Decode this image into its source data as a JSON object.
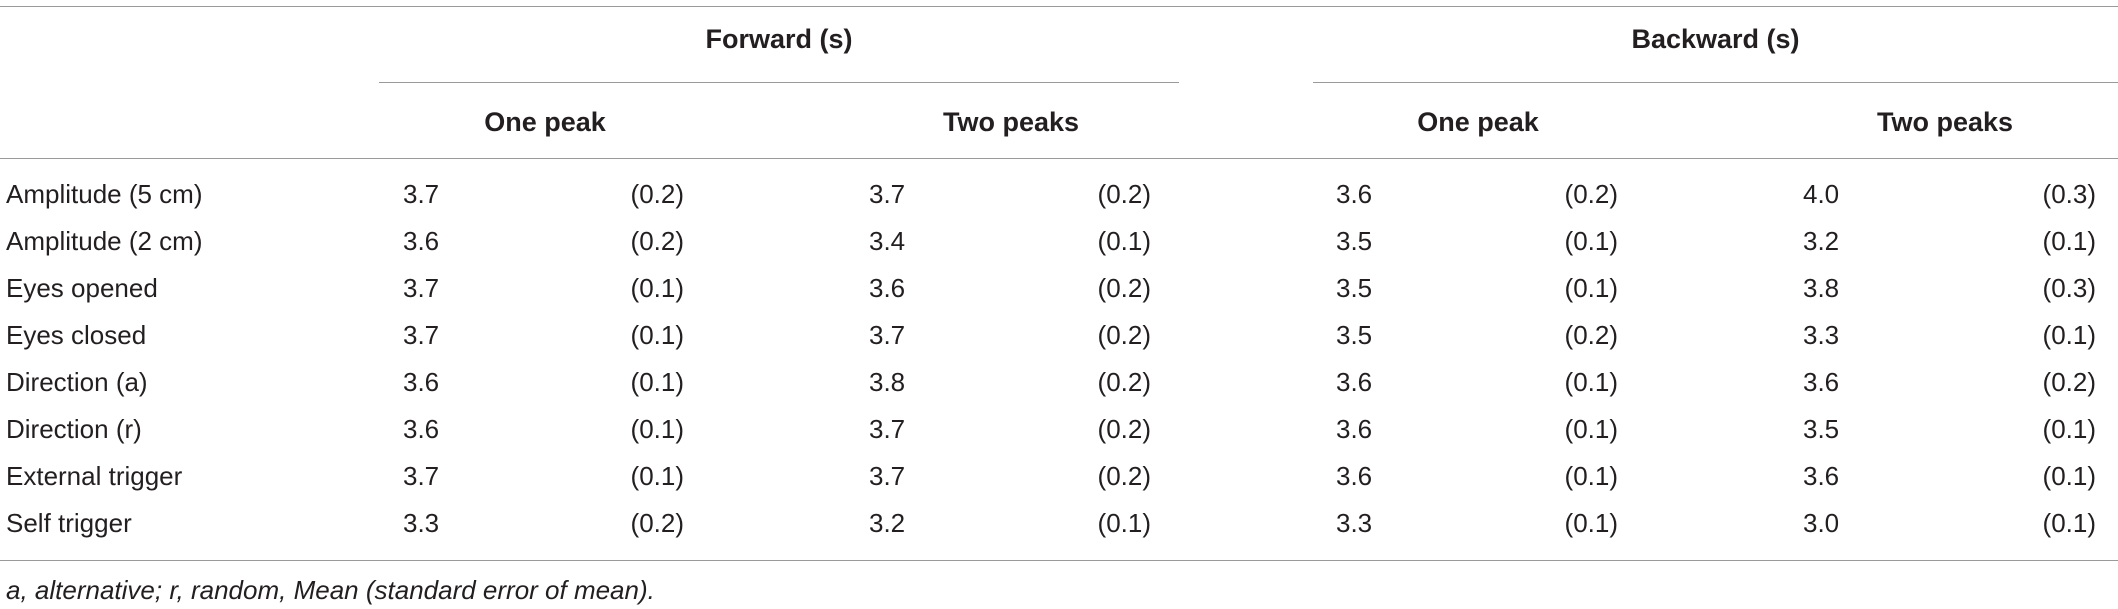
{
  "table": {
    "group_headers": [
      "Forward (s)",
      "Backward (s)"
    ],
    "sub_headers": [
      "One peak",
      "Two peaks",
      "One peak",
      "Two peaks"
    ],
    "rows": [
      {
        "label": "Amplitude (5 cm)",
        "values": [
          "3.7",
          "(0.2)",
          "3.7",
          "(0.2)",
          "3.6",
          "(0.2)",
          "4.0",
          "(0.3)"
        ]
      },
      {
        "label": "Amplitude (2 cm)",
        "values": [
          "3.6",
          "(0.2)",
          "3.4",
          "(0.1)",
          "3.5",
          "(0.1)",
          "3.2",
          "(0.1)"
        ]
      },
      {
        "label": "Eyes opened",
        "values": [
          "3.7",
          "(0.1)",
          "3.6",
          "(0.2)",
          "3.5",
          "(0.1)",
          "3.8",
          "(0.3)"
        ]
      },
      {
        "label": "Eyes closed",
        "values": [
          "3.7",
          "(0.1)",
          "3.7",
          "(0.2)",
          "3.5",
          "(0.2)",
          "3.3",
          "(0.1)"
        ]
      },
      {
        "label": "Direction (a)",
        "values": [
          "3.6",
          "(0.1)",
          "3.8",
          "(0.2)",
          "3.6",
          "(0.1)",
          "3.6",
          "(0.2)"
        ]
      },
      {
        "label": "Direction (r)",
        "values": [
          "3.6",
          "(0.1)",
          "3.7",
          "(0.2)",
          "3.6",
          "(0.1)",
          "3.5",
          "(0.1)"
        ]
      },
      {
        "label": "External trigger",
        "values": [
          "3.7",
          "(0.1)",
          "3.7",
          "(0.2)",
          "3.6",
          "(0.1)",
          "3.6",
          "(0.1)"
        ]
      },
      {
        "label": "Self trigger",
        "values": [
          "3.3",
          "(0.2)",
          "3.2",
          "(0.1)",
          "3.3",
          "(0.1)",
          "3.0",
          "(0.1)"
        ]
      }
    ],
    "footnote": "a, alternative; r, random, Mean (standard error of mean)."
  }
}
